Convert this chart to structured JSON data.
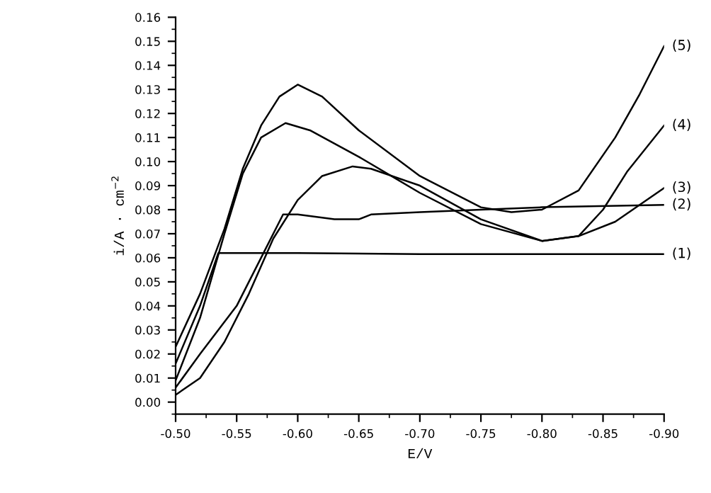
{
  "chart_data": {
    "type": "line",
    "xlabel": "E/V",
    "ylabel": "i/A · cm$^{−2}$",
    "xlim": [
      -0.5,
      -0.9
    ],
    "ylim": [
      -0.005,
      0.16
    ],
    "xticks": [
      {
        "value": -0.5,
        "label": "-0.50"
      },
      {
        "value": -0.55,
        "label": "-0.55"
      },
      {
        "value": -0.6,
        "label": "-0.60"
      },
      {
        "value": -0.65,
        "label": "-0.65"
      },
      {
        "value": -0.7,
        "label": "-0.70"
      },
      {
        "value": -0.75,
        "label": "-0.75"
      },
      {
        "value": -0.8,
        "label": "-0.80"
      },
      {
        "value": -0.85,
        "label": "-0.85"
      },
      {
        "value": -0.9,
        "label": "-0.90"
      }
    ],
    "yticks": [
      {
        "value": 0,
        "label": "0.00"
      },
      {
        "value": 0.01,
        "label": "0.01"
      },
      {
        "value": 0.02,
        "label": "0.02"
      },
      {
        "value": 0.03,
        "label": "0.03"
      },
      {
        "value": 0.04,
        "label": "0.04"
      },
      {
        "value": 0.05,
        "label": "0.05"
      },
      {
        "value": 0.06,
        "label": "0.06"
      },
      {
        "value": 0.07,
        "label": "0.07"
      },
      {
        "value": 0.08,
        "label": "0.08"
      },
      {
        "value": 0.09,
        "label": "0.09"
      },
      {
        "value": 0.1,
        "label": "0.10"
      },
      {
        "value": 0.11,
        "label": "0.11"
      },
      {
        "value": 0.12,
        "label": "0.12"
      },
      {
        "value": 0.13,
        "label": "0.13"
      },
      {
        "value": 0.14,
        "label": "0.14"
      },
      {
        "value": 0.15,
        "label": "0.15"
      },
      {
        "value": 0.16,
        "label": "0.16"
      }
    ],
    "grid": false,
    "legend": false,
    "marker": "none",
    "line_style": "solid",
    "series": [
      {
        "name": "(1)",
        "color": "#000000",
        "x": [
          -0.5,
          -0.52,
          -0.535,
          -0.6,
          -0.7,
          -0.9
        ],
        "values": [
          0.016,
          0.04,
          0.062,
          0.062,
          0.0615,
          0.0615
        ]
      },
      {
        "name": "(2)",
        "color": "#000000",
        "x": [
          -0.5,
          -0.52,
          -0.55,
          -0.57,
          -0.588,
          -0.6,
          -0.63,
          -0.65,
          -0.66,
          -0.7,
          -0.75,
          -0.8,
          -0.9
        ],
        "values": [
          0.006,
          0.02,
          0.04,
          0.06,
          0.078,
          0.078,
          0.076,
          0.076,
          0.078,
          0.079,
          0.08,
          0.081,
          0.082
        ]
      },
      {
        "name": "(3)",
        "color": "#000000",
        "x": [
          -0.5,
          -0.52,
          -0.54,
          -0.56,
          -0.58,
          -0.6,
          -0.62,
          -0.645,
          -0.66,
          -0.7,
          -0.75,
          -0.8,
          -0.83,
          -0.86,
          -0.9
        ],
        "values": [
          0.003,
          0.01,
          0.025,
          0.045,
          0.068,
          0.084,
          0.094,
          0.098,
          0.097,
          0.09,
          0.076,
          0.067,
          0.069,
          0.075,
          0.089
        ]
      },
      {
        "name": "(4)",
        "color": "#000000",
        "x": [
          -0.5,
          -0.52,
          -0.54,
          -0.555,
          -0.57,
          -0.59,
          -0.61,
          -0.65,
          -0.7,
          -0.75,
          -0.8,
          -0.83,
          -0.85,
          -0.87,
          -0.9
        ],
        "values": [
          0.009,
          0.035,
          0.07,
          0.095,
          0.11,
          0.116,
          0.113,
          0.102,
          0.087,
          0.074,
          0.067,
          0.069,
          0.08,
          0.096,
          0.115
        ]
      },
      {
        "name": "(5)",
        "color": "#000000",
        "x": [
          -0.5,
          -0.52,
          -0.54,
          -0.555,
          -0.57,
          -0.585,
          -0.6,
          -0.62,
          -0.65,
          -0.7,
          -0.75,
          -0.775,
          -0.8,
          -0.83,
          -0.86,
          -0.88,
          -0.9
        ],
        "values": [
          0.023,
          0.045,
          0.072,
          0.097,
          0.115,
          0.127,
          0.132,
          0.127,
          0.113,
          0.094,
          0.081,
          0.079,
          0.08,
          0.088,
          0.11,
          0.128,
          0.148
        ]
      }
    ]
  }
}
